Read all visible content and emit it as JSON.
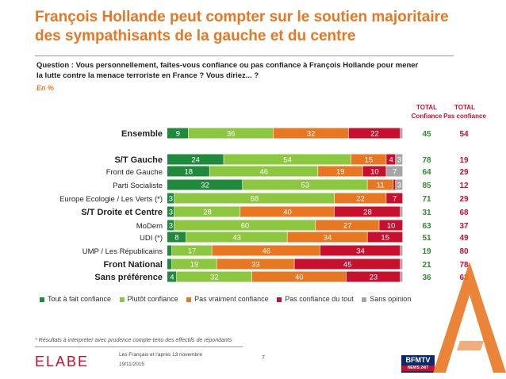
{
  "title_lines": [
    "François Hollande peut compter sur le soutien majoritaire",
    "des sympathisants de la gauche et du centre"
  ],
  "question_lines": [
    "Question : Vous personnellement, faites-vous confiance ou pas confiance à François Hollande pour mener",
    "la lutte contre la menace terroriste en France ? Vous diriez... ?"
  ],
  "unit": "En %",
  "col_headers": {
    "confiance": [
      "TOTAL",
      "Confiance"
    ],
    "pas_confiance": [
      "TOTAL",
      "Pas confiance"
    ]
  },
  "colors": {
    "tout_a_fait": "#1f8a3c",
    "plutot": "#8dc63f",
    "pas_vraiment": "#e87722",
    "pas_du_tout": "#c8102e",
    "sans_opinion": "#a6a6a6",
    "title": "#e87722",
    "total_confiance": "#2e8b2e",
    "total_pas_confiance": "#c8102e"
  },
  "chart_data": {
    "type": "bar",
    "orientation": "horizontal",
    "stacked": true,
    "categories": [
      "Ensemble",
      "S/T Gauche",
      "Front de Gauche",
      "Parti Socialiste",
      "Europe Ecologie / Les Verts (*)",
      "S/T Droite et Centre",
      "MoDem",
      "UDI (*)",
      "UMP / Les Républicains",
      "Front National",
      "Sans préférence"
    ],
    "bold_categories": [
      "Ensemble",
      "S/T Gauche",
      "S/T Droite et Centre",
      "Front National",
      "Sans préférence"
    ],
    "series": [
      {
        "name": "Tout à fait confiance",
        "values": [
          9,
          24,
          18,
          32,
          3,
          3,
          3,
          8,
          2,
          2,
          4
        ]
      },
      {
        "name": "Plutôt confiance",
        "values": [
          36,
          54,
          46,
          53,
          68,
          28,
          60,
          43,
          17,
          19,
          32
        ]
      },
      {
        "name": "Pas vraiment confiance",
        "values": [
          32,
          15,
          19,
          11,
          22,
          40,
          27,
          34,
          46,
          33,
          40
        ]
      },
      {
        "name": "Pas confiance du tout",
        "values": [
          22,
          4,
          10,
          1,
          7,
          28,
          10,
          15,
          34,
          45,
          23
        ]
      },
      {
        "name": "Sans opinion",
        "values": [
          1,
          3,
          7,
          3,
          0,
          1,
          0,
          0,
          1,
          1,
          1
        ]
      }
    ],
    "total_confiance": [
      45,
      78,
      64,
      85,
      71,
      31,
      63,
      51,
      19,
      21,
      36
    ],
    "total_pas_confiance": [
      54,
      19,
      29,
      12,
      29,
      68,
      37,
      49,
      80,
      78,
      63
    ],
    "xlim": [
      0,
      100
    ]
  },
  "note": "* Résultats à interpréter avec prudence compte-tenu des effectifs de répondants",
  "footer": {
    "brand": "ELABE",
    "line1": "Les Français et l'après 13 novembre",
    "line2": "19/11/2015",
    "page": "7",
    "channel": "BFMTV",
    "channel_sub": "NEWS 24/7"
  }
}
